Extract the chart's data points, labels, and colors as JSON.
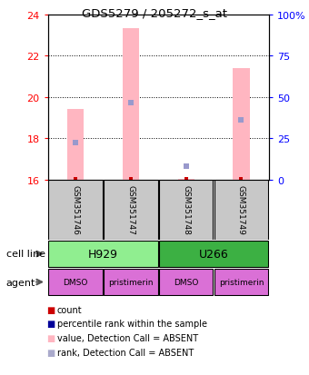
{
  "title": "GDS5279 / 205272_s_at",
  "samples": [
    "GSM351746",
    "GSM351747",
    "GSM351748",
    "GSM351749"
  ],
  "bar_values": [
    19.4,
    23.3,
    16.05,
    21.4
  ],
  "bar_base": 16.0,
  "rank_values": [
    17.8,
    19.7,
    16.65,
    18.9
  ],
  "bar_color": "#FFB6C1",
  "rank_color": "#9999CC",
  "ylim_left": [
    16,
    24
  ],
  "ylim_right": [
    0,
    100
  ],
  "yticks_left": [
    16,
    18,
    20,
    22,
    24
  ],
  "yticks_right": [
    0,
    25,
    50,
    75,
    100
  ],
  "ytick_labels_right": [
    "0",
    "25",
    "50",
    "75",
    "100%"
  ],
  "cell_line_labels": [
    "H929",
    "U266"
  ],
  "cell_line_spans": [
    [
      0,
      2
    ],
    [
      2,
      4
    ]
  ],
  "cell_line_colors": [
    "#90EE90",
    "#3CB043"
  ],
  "agent_labels": [
    "DMSO",
    "pristimerin",
    "DMSO",
    "pristimerin"
  ],
  "agent_color": "#DA70D6",
  "legend_items": [
    {
      "color": "#CC0000",
      "label": "count",
      "marker": "s"
    },
    {
      "color": "#000099",
      "label": "percentile rank within the sample",
      "marker": "s"
    },
    {
      "color": "#FFB6C1",
      "label": "value, Detection Call = ABSENT",
      "marker": "s"
    },
    {
      "color": "#AAAACC",
      "label": "rank, Detection Call = ABSENT",
      "marker": "s"
    }
  ],
  "bar_width": 0.3,
  "x_positions": [
    1,
    2,
    3,
    4
  ],
  "fig_width": 3.4,
  "fig_height": 4.14,
  "dpi": 100
}
